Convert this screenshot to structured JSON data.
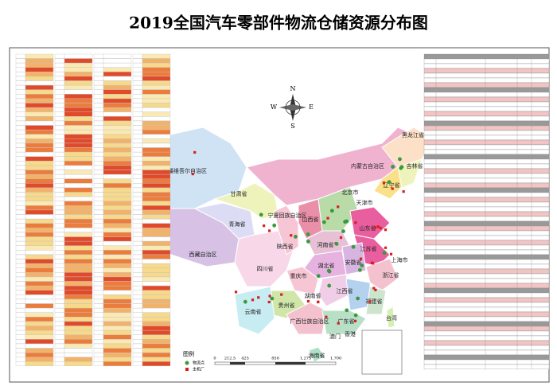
{
  "header": {
    "title": "2019全国汽车零部件物流仓储资源分布图"
  },
  "compass": {
    "north": "N",
    "south": "S",
    "west": "W",
    "east": "E"
  },
  "provinces": [
    {
      "label": "新疆维吾尔自治区"
    },
    {
      "label": "甘肃省"
    },
    {
      "label": "青海省"
    },
    {
      "label": "西藏自治区"
    },
    {
      "label": "内蒙古自治区"
    },
    {
      "label": "黑龙江省"
    },
    {
      "label": "吉林省"
    },
    {
      "label": "辽宁省"
    },
    {
      "label": "北京市"
    },
    {
      "label": "天津市"
    },
    {
      "label": "宁夏回族自治区"
    },
    {
      "label": "山西省"
    },
    {
      "label": "山东省"
    },
    {
      "label": "河南省"
    },
    {
      "label": "陕西省"
    },
    {
      "label": "江苏省"
    },
    {
      "label": "安徽省"
    },
    {
      "label": "上海市"
    },
    {
      "label": "湖北省"
    },
    {
      "label": "浙江省"
    },
    {
      "label": "四川省"
    },
    {
      "label": "重庆市"
    },
    {
      "label": "江西省"
    },
    {
      "label": "湖南省"
    },
    {
      "label": "福建省"
    },
    {
      "label": "贵州省"
    },
    {
      "label": "云南省"
    },
    {
      "label": "广西壮族自治区"
    },
    {
      "label": "广东省"
    },
    {
      "label": "台湾"
    },
    {
      "label": "香港"
    },
    {
      "label": "澳门"
    },
    {
      "label": "海南省"
    }
  ],
  "legend": {
    "title": "图例",
    "items": [
      {
        "label": "物流点"
      },
      {
        "label": "主机厂"
      }
    ]
  },
  "scale": {
    "labels": [
      "0",
      "212.5",
      "425",
      "850",
      "1,275",
      "1,700"
    ]
  }
}
